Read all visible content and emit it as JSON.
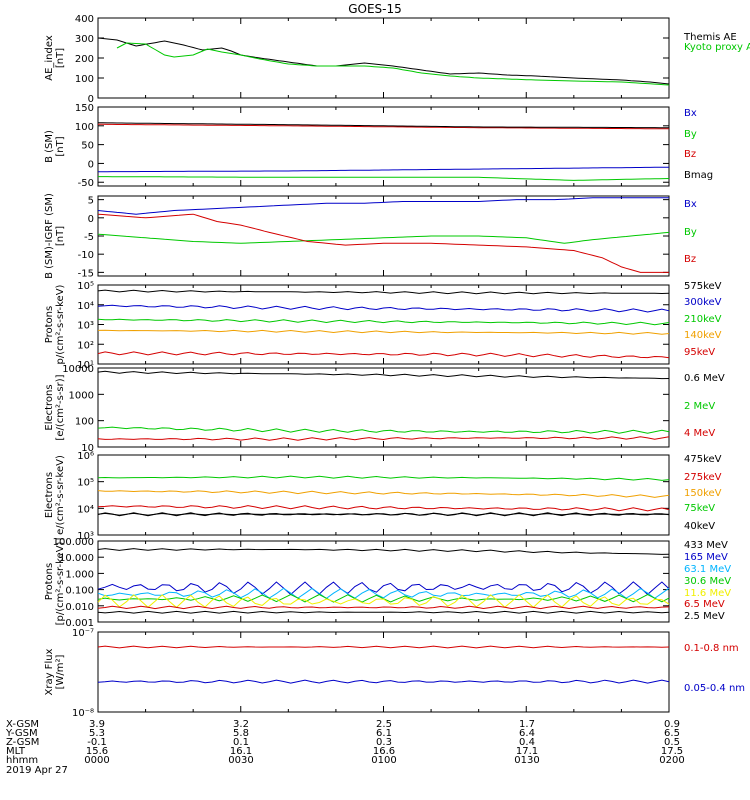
{
  "title": "GOES-15",
  "colors": {
    "black": "#000000",
    "red": "#d40000",
    "green": "#00c800",
    "blue": "#0000c8",
    "orange": "#f0a000",
    "cyan": "#00b4ff",
    "yellow": "#f0f000"
  },
  "chart_data": [
    {
      "id": "ae",
      "type": "line",
      "ylabel": [
        "AE_index",
        "[nT]"
      ],
      "ylim": [
        0,
        400
      ],
      "yticks": [
        "400",
        "300",
        "200",
        "100",
        "0"
      ],
      "series": [
        {
          "name": "Themis AE",
          "color": "#000000",
          "x": [
            0,
            4,
            8,
            14,
            18,
            22,
            26,
            28,
            30,
            34,
            40,
            46,
            50,
            56,
            62,
            68,
            74,
            80,
            86,
            92,
            100,
            110,
            116,
            120
          ],
          "values": [
            300,
            290,
            260,
            285,
            265,
            240,
            250,
            235,
            215,
            200,
            180,
            160,
            160,
            175,
            160,
            140,
            120,
            125,
            115,
            110,
            100,
            90,
            80,
            70
          ]
        },
        {
          "name": "Kyoto proxy AE",
          "color": "#00c800",
          "x": [
            4,
            6,
            10,
            14,
            16,
            20,
            23,
            26,
            30,
            34,
            40,
            46,
            50,
            56,
            62,
            68,
            74,
            80,
            86,
            92,
            100,
            110,
            120
          ],
          "values": [
            250,
            275,
            270,
            215,
            205,
            215,
            245,
            230,
            215,
            195,
            170,
            160,
            160,
            160,
            150,
            125,
            110,
            100,
            95,
            90,
            85,
            80,
            65
          ]
        }
      ]
    },
    {
      "id": "bsm",
      "type": "line",
      "ylabel": [
        "B (SM)",
        "[nT]"
      ],
      "ylim": [
        -60,
        150
      ],
      "yticks": [
        "150",
        "100",
        "50",
        "0",
        "-50"
      ],
      "series": [
        {
          "name": "Bx",
          "color": "#0000c8",
          "x": [
            0,
            40,
            80,
            120
          ],
          "values": [
            -22,
            -20,
            -15,
            -10
          ]
        },
        {
          "name": "By",
          "color": "#00c800",
          "x": [
            0,
            40,
            80,
            100,
            120
          ],
          "values": [
            -35,
            -37,
            -37,
            -45,
            -40
          ]
        },
        {
          "name": "Bz",
          "color": "#d40000",
          "x": [
            0,
            40,
            80,
            120
          ],
          "values": [
            104,
            100,
            95,
            92
          ]
        },
        {
          "name": "Bmag",
          "color": "#000000",
          "x": [
            0,
            40,
            80,
            120
          ],
          "values": [
            108,
            103,
            97,
            95
          ]
        }
      ]
    },
    {
      "id": "bigrf",
      "type": "line",
      "ylabel": [
        "B (SM)-IGRF (SM)",
        "[nT]"
      ],
      "ylim": [
        -16,
        6
      ],
      "yticks": [
        "5",
        "0",
        "-5",
        "-10",
        "-15"
      ],
      "series": [
        {
          "name": "Bx",
          "color": "#0000c8",
          "x": [
            0,
            8,
            16,
            24,
            32,
            40,
            48,
            56,
            64,
            72,
            80,
            88,
            96,
            104,
            112,
            120
          ],
          "values": [
            2,
            1,
            2,
            2.5,
            3,
            3.5,
            4,
            4,
            4.5,
            4.5,
            4.5,
            5,
            5,
            5.5,
            5.5,
            5.5
          ]
        },
        {
          "name": "By",
          "color": "#00c800",
          "x": [
            0,
            10,
            20,
            30,
            40,
            50,
            60,
            70,
            80,
            90,
            98,
            104,
            112,
            120
          ],
          "values": [
            -4.5,
            -5.5,
            -6.5,
            -7,
            -6.5,
            -6,
            -5.5,
            -5,
            -5,
            -5.5,
            -7,
            -6,
            -5,
            -4
          ]
        },
        {
          "name": "Bz",
          "color": "#d40000",
          "x": [
            0,
            10,
            20,
            25,
            30,
            36,
            44,
            52,
            60,
            70,
            80,
            90,
            100,
            106,
            110,
            114,
            120
          ],
          "values": [
            1,
            0,
            1,
            -1,
            -2,
            -4,
            -6.5,
            -7.5,
            -7,
            -7,
            -7.5,
            -8,
            -9,
            -11,
            -13.5,
            -15,
            -15
          ]
        }
      ]
    },
    {
      "id": "protons1",
      "type": "line",
      "yscale": "log",
      "ylabel": [
        "Protons",
        "p/(cm²-s-sr-keV)"
      ],
      "ylim": [
        10,
        100000
      ],
      "yticks": [
        "10⁵",
        "10⁴",
        "10³",
        "10²",
        "10¹"
      ],
      "series": [
        {
          "name": "575keV",
          "color": "#000000",
          "x": [
            0,
            40,
            80,
            120
          ],
          "values": [
            50000,
            45000,
            40000,
            38000
          ]
        },
        {
          "name": "300keV",
          "color": "#0000c8",
          "x": [
            0,
            40,
            80,
            120
          ],
          "values": [
            9000,
            7000,
            6000,
            5000
          ]
        },
        {
          "name": "210keV",
          "color": "#00c800",
          "x": [
            0,
            40,
            80,
            120
          ],
          "values": [
            1800,
            1500,
            1300,
            1100
          ]
        },
        {
          "name": "140keV",
          "color": "#f0a000",
          "x": [
            0,
            40,
            80,
            120
          ],
          "values": [
            500,
            450,
            400,
            350
          ]
        },
        {
          "name": "95keV",
          "color": "#d40000",
          "x": [
            0,
            40,
            80,
            120
          ],
          "values": [
            35,
            33,
            30,
            22
          ]
        }
      ]
    },
    {
      "id": "electrons1",
      "type": "line",
      "yscale": "log",
      "ylabel": [
        "Electrons",
        "[e/(cm²-s-sr)]"
      ],
      "ylim": [
        10,
        10000
      ],
      "yticks": [
        "10000",
        "1000",
        "100",
        "10"
      ],
      "series": [
        {
          "name": "0.6 MeV",
          "color": "#000000",
          "x": [
            0,
            40,
            80,
            120
          ],
          "values": [
            7000,
            6000,
            5000,
            4000
          ]
        },
        {
          "name": "2 MeV",
          "color": "#00c800",
          "x": [
            0,
            40,
            80,
            120
          ],
          "values": [
            55,
            42,
            38,
            38
          ]
        },
        {
          "name": "4 MeV",
          "color": "#d40000",
          "x": [
            0,
            40,
            80,
            120
          ],
          "values": [
            20,
            20,
            22,
            22
          ]
        }
      ]
    },
    {
      "id": "electrons2",
      "type": "line",
      "yscale": "log",
      "ylabel": [
        "Electrons",
        "e/(cm²-s-sr-keV)"
      ],
      "ylim": [
        1000,
        1000000
      ],
      "yticks": [
        "10⁶",
        "10⁵",
        "10⁴",
        "10³"
      ],
      "series": [
        {
          "name": "475keV",
          "color": "#000000",
          "x": [
            0,
            40,
            80,
            120
          ],
          "values": [
            6000,
            6000,
            6000,
            6000
          ]
        },
        {
          "name": "275keV",
          "color": "#d40000",
          "x": [
            0,
            40,
            80,
            120
          ],
          "values": [
            12000,
            11000,
            10000,
            9000
          ]
        },
        {
          "name": "150keV",
          "color": "#f0a000",
          "x": [
            0,
            40,
            80,
            120
          ],
          "values": [
            45000,
            40000,
            35000,
            28000
          ]
        },
        {
          "name": "75keV",
          "color": "#00c800",
          "x": [
            0,
            40,
            80,
            120
          ],
          "values": [
            140000,
            150000,
            140000,
            120000
          ]
        },
        {
          "name": "40keV",
          "color": "#000000",
          "x": [
            0,
            40,
            80,
            120
          ],
          "values": [
            6000,
            6000,
            6000,
            6000
          ]
        }
      ]
    },
    {
      "id": "protons2",
      "type": "line",
      "yscale": "log",
      "ylabel": [
        "Protons",
        "[p/(cm²-s-sr-keV)]"
      ],
      "ylim": [
        0.001,
        100
      ],
      "yticks": [
        "100.000",
        "10.000",
        "1.000",
        "0.100",
        "0.010",
        "0.001"
      ],
      "series": [
        {
          "name": "433 MeV",
          "color": "#000000",
          "x": [
            0,
            40,
            80,
            120
          ],
          "values": [
            30,
            30,
            25,
            15
          ]
        },
        {
          "name": "165 MeV",
          "color": "#0000c8",
          "x": [
            0,
            40,
            80,
            120
          ],
          "values": [
            0.15,
            0.12,
            0.15,
            0.12
          ]
        },
        {
          "name": "63.1 MeV",
          "color": "#00b4ff",
          "x": [
            0,
            40,
            80,
            120
          ],
          "values": [
            0.05,
            0.06,
            0.05,
            0.06
          ]
        },
        {
          "name": "30.6 MeV",
          "color": "#00c800",
          "x": [
            0,
            40,
            80,
            120
          ],
          "values": [
            0.025,
            0.03,
            0.025,
            0.03
          ]
        },
        {
          "name": "11.6 MeV",
          "color": "#f0f000",
          "x": [
            0,
            40,
            80,
            120
          ],
          "values": [
            0.02,
            0.018,
            0.02,
            0.018
          ]
        },
        {
          "name": "6.5 MeV",
          "color": "#d40000",
          "x": [
            0,
            40,
            80,
            120
          ],
          "values": [
            0.008,
            0.008,
            0.008,
            0.008
          ]
        },
        {
          "name": "2.5 MeV",
          "color": "#000000",
          "x": [
            0,
            40,
            80,
            120
          ],
          "values": [
            0.004,
            0.004,
            0.004,
            0.004
          ]
        }
      ]
    },
    {
      "id": "xray",
      "type": "line",
      "yscale": "log",
      "ylabel": [
        "Xray Flux",
        "[W/m²]"
      ],
      "ylim": [
        1e-08,
        1e-07
      ],
      "yticks": [
        "10⁻⁷",
        "10⁻⁸"
      ],
      "series": [
        {
          "name": "0.1-0.8 nm",
          "color": "#d40000",
          "x": [
            0,
            40,
            80,
            120
          ],
          "values": [
            6.5e-08,
            6.5e-08,
            6.5e-08,
            6.5e-08
          ]
        },
        {
          "name": "0.05-0.4 nm",
          "color": "#0000c8",
          "x": [
            0,
            40,
            80,
            120
          ],
          "values": [
            2.4e-08,
            2.4e-08,
            2.4e-08,
            2.4e-08
          ]
        }
      ]
    }
  ],
  "axis_table": {
    "rows": [
      {
        "label": "X-GSM",
        "values": [
          "3.9",
          "3.2",
          "2.5",
          "1.7",
          "0.9"
        ]
      },
      {
        "label": "Y-GSM",
        "values": [
          "5.3",
          "5.8",
          "6.1",
          "6.4",
          "6.5"
        ]
      },
      {
        "label": "Z-GSM",
        "values": [
          "-0.1",
          "0.1",
          "0.3",
          "0.4",
          "0.5"
        ]
      },
      {
        "label": "MLT",
        "values": [
          "15.6",
          "16.1",
          "16.6",
          "17.1",
          "17.5"
        ]
      },
      {
        "label": "hhmm",
        "values": [
          "0000",
          "0030",
          "0100",
          "0130",
          "0200"
        ]
      }
    ],
    "date": "2019 Apr 27"
  }
}
